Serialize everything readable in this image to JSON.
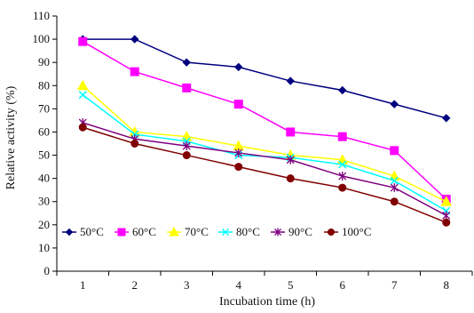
{
  "chart_data": {
    "type": "line",
    "xlabel": "Incubation time (h)",
    "ylabel": "Relative activity (%)",
    "x": [
      1,
      2,
      3,
      4,
      5,
      6,
      7,
      8
    ],
    "xlim": [
      0.5,
      8.5
    ],
    "ylim": [
      0,
      110
    ],
    "y_ticks": [
      0,
      10,
      20,
      30,
      40,
      50,
      60,
      70,
      80,
      90,
      100,
      110
    ],
    "grid": false,
    "legend_position": "bottom-left",
    "series": [
      {
        "name": "50°C",
        "color": "#00007f",
        "marker": "diamond",
        "values": [
          100,
          100,
          90,
          88,
          82,
          78,
          72,
          66
        ]
      },
      {
        "name": "60°C",
        "color": "#ff00ff",
        "marker": "square",
        "values": [
          99,
          86,
          79,
          72,
          60,
          58,
          52,
          31
        ]
      },
      {
        "name": "70°C",
        "color": "#ffff00",
        "marker": "triangle",
        "values": [
          80,
          60,
          58,
          54,
          50,
          48,
          41,
          30
        ]
      },
      {
        "name": "80°C",
        "color": "#00ffff",
        "marker": "x",
        "values": [
          76,
          59,
          56,
          50,
          49,
          46,
          39,
          26
        ]
      },
      {
        "name": "90°C",
        "color": "#7f007f",
        "marker": "star",
        "values": [
          64,
          57,
          54,
          51,
          48,
          41,
          36,
          24
        ]
      },
      {
        "name": "100°C",
        "color": "#800000",
        "marker": "circle",
        "values": [
          62,
          55,
          50,
          45,
          40,
          36,
          30,
          21
        ]
      }
    ]
  }
}
